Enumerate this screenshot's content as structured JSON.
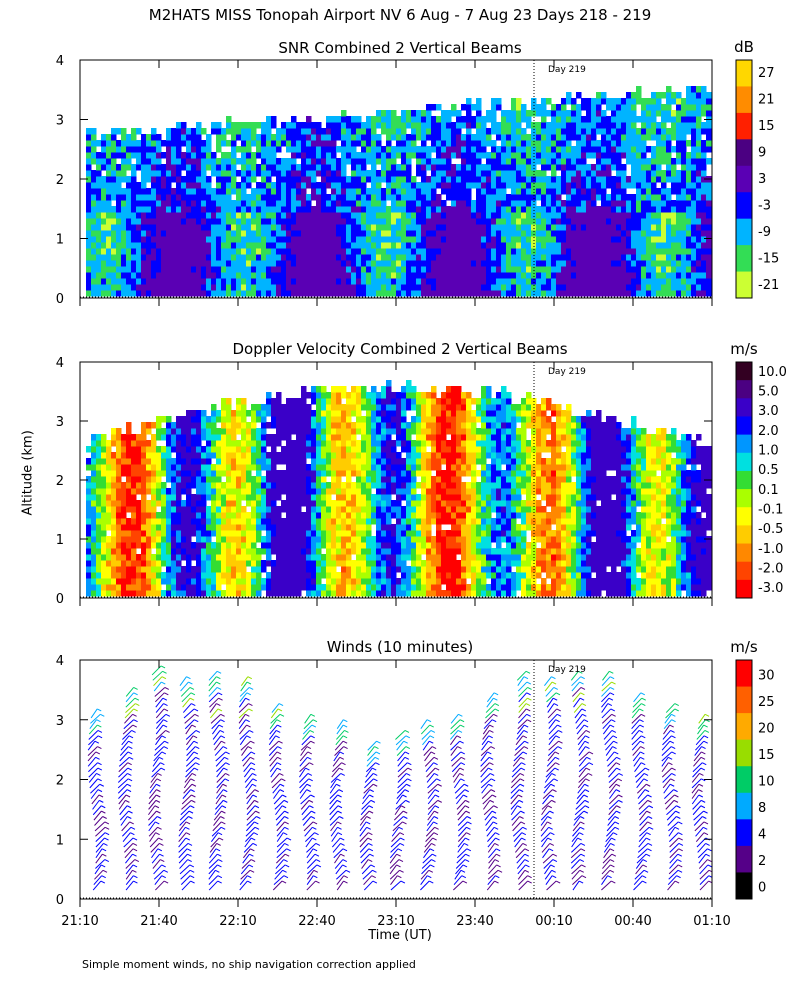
{
  "page": {
    "title": "M2HATS MISS Tonopah Airport NV   6 Aug -  7 Aug 23 Days 218 - 219",
    "y_axis_label": "Altitude (km)",
    "x_axis_label": "Time (UT)",
    "footnote": "Simple moment winds, no ship navigation correction applied"
  },
  "chart_data": [
    {
      "type": "heatmap",
      "title": "SNR Combined 2 Vertical Beams",
      "colorbar_unit": "dB",
      "colorbar_ticks": [
        "27",
        "21",
        "15",
        "9",
        "3",
        "-3",
        "-9",
        "-15",
        "-21"
      ],
      "colorbar_colors": [
        "#ffd700",
        "#ff8c00",
        "#ff2000",
        "#4b0082",
        "#5a00b4",
        "#0000ff",
        "#00b4ff",
        "#33dd55",
        "#ccff33"
      ],
      "ylim": [
        0,
        4
      ],
      "yticks": [
        "0",
        "1",
        "2",
        "3",
        "4"
      ],
      "annotation": "Day 219",
      "time_range": [
        "21:10",
        "01:10"
      ]
    },
    {
      "type": "heatmap",
      "title": "Doppler Velocity Combined 2 Vertical Beams",
      "colorbar_unit": "m/s",
      "colorbar_ticks": [
        "10.0",
        "5.0",
        "3.0",
        "2.0",
        "1.0",
        "0.5",
        "0.1",
        "-0.1",
        "-0.5",
        "-1.0",
        "-2.0",
        "-3.0"
      ],
      "colorbar_colors": [
        "#330022",
        "#4b0082",
        "#3a00c8",
        "#0000ff",
        "#0096ff",
        "#00e0e0",
        "#33dd33",
        "#aaff00",
        "#ffff00",
        "#ffcc00",
        "#ff8800",
        "#ff4400",
        "#ff0000"
      ],
      "ylim": [
        0,
        4
      ],
      "yticks": [
        "0",
        "1",
        "2",
        "3",
        "4"
      ],
      "annotation": "Day 219",
      "time_range": [
        "21:10",
        "01:10"
      ]
    },
    {
      "type": "scatter",
      "title": "Winds (10 minutes)",
      "colorbar_unit": "m/s",
      "colorbar_ticks": [
        "30",
        "25",
        "20",
        "15",
        "10",
        "8",
        "4",
        "2",
        "0"
      ],
      "colorbar_colors": [
        "#ff0000",
        "#ff6000",
        "#ffaa00",
        "#99dd00",
        "#00cc66",
        "#00aaff",
        "#0000ff",
        "#550088",
        "#000000"
      ],
      "ylim": [
        0,
        4
      ],
      "yticks": [
        "0",
        "1",
        "2",
        "3",
        "4"
      ],
      "xticks": [
        "21:10",
        "21:40",
        "22:10",
        "22:40",
        "23:10",
        "23:40",
        "00:10",
        "00:40",
        "01:10"
      ],
      "annotation": "Day 219",
      "time_range": [
        "21:10",
        "01:10"
      ]
    }
  ]
}
